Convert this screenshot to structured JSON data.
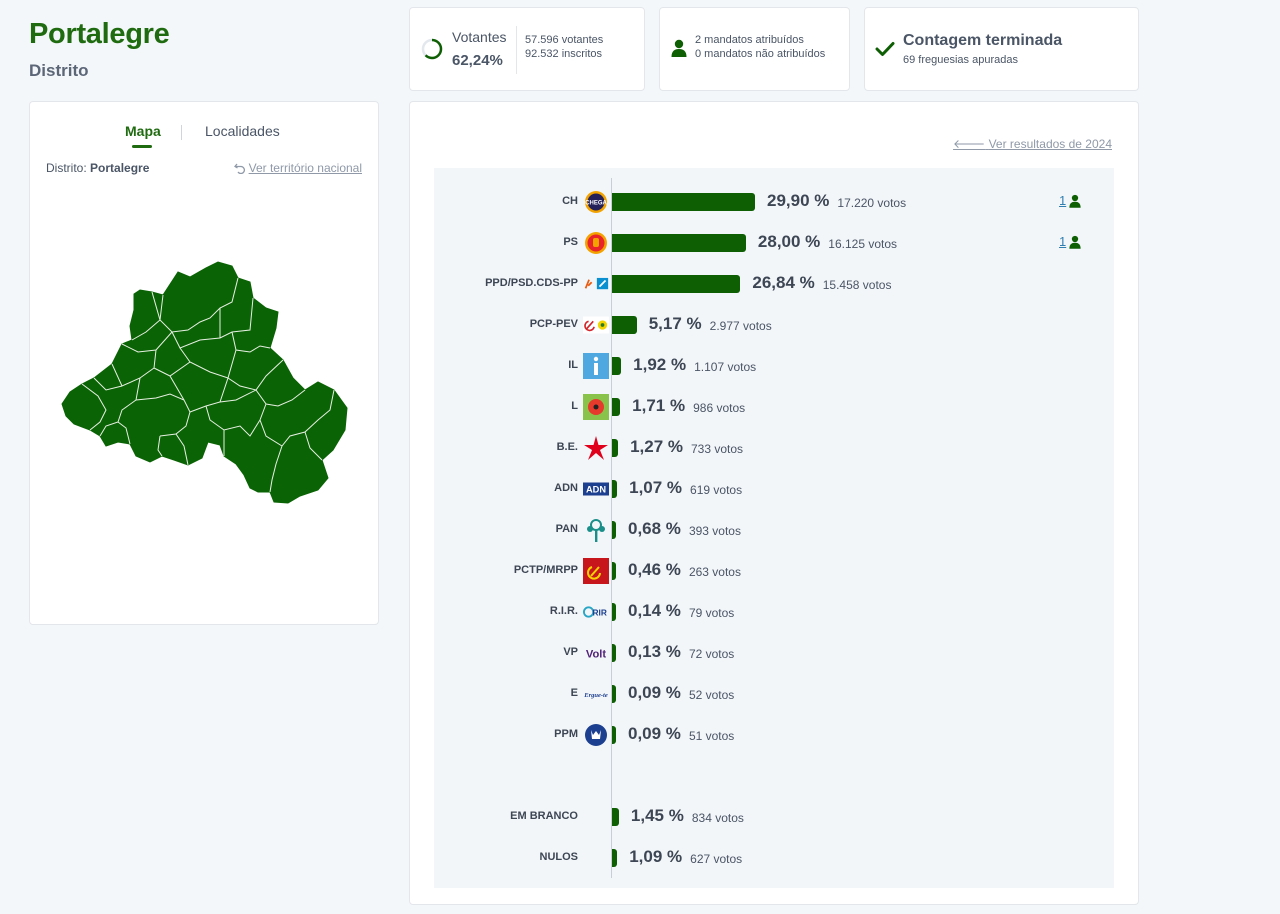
{
  "header": {
    "title": "Portalegre",
    "subtitle": "Distrito"
  },
  "map_panel": {
    "tab_map": "Mapa",
    "tab_localities": "Localidades",
    "district_label": "Distrito:",
    "district_name": "Portalegre",
    "national_link": "Ver território nacional",
    "map_color": "#0a6304"
  },
  "summary": {
    "voters_label": "Votantes",
    "voters_pct": "62,24%",
    "voters_count": "57.596 votantes",
    "registered": "92.532 inscritos",
    "mandates_assigned": "2 mandatos atribuídos",
    "mandates_unassigned": "0 mandatos não atribuídos",
    "count_status": "Contagem terminada",
    "parishes": "69 freguesias apuradas"
  },
  "results": {
    "previous_link": "Ver resultados de 2024",
    "bar_color": "#0e5f04",
    "parties": [
      {
        "name": "CH",
        "pct": "29,90 %",
        "votes": "17.220 votos",
        "value": 29.9,
        "mandates": "1",
        "logo": "chega-logo"
      },
      {
        "name": "PS",
        "pct": "28,00 %",
        "votes": "16.125 votos",
        "value": 28.0,
        "mandates": "1",
        "logo": "ps-fist-logo"
      },
      {
        "name": "PPD/PSD.CDS-PP",
        "pct": "26,84 %",
        "votes": "15.458 votos",
        "value": 26.84,
        "mandates": "",
        "logo": "ad-logo"
      },
      {
        "name": "PCP-PEV",
        "pct": "5,17 %",
        "votes": "2.977 votos",
        "value": 5.17,
        "mandates": "",
        "logo": "cdu-logo"
      },
      {
        "name": "IL",
        "pct": "1,92 %",
        "votes": "1.107 votos",
        "value": 1.92,
        "mandates": "",
        "logo": "il-logo"
      },
      {
        "name": "L",
        "pct": "1,71 %",
        "votes": "986 votos",
        "value": 1.71,
        "mandates": "",
        "logo": "livre-logo"
      },
      {
        "name": "B.E.",
        "pct": "1,27 %",
        "votes": "733 votos",
        "value": 1.27,
        "mandates": "",
        "logo": "be-star-logo"
      },
      {
        "name": "ADN",
        "pct": "1,07 %",
        "votes": "619 votos",
        "value": 1.07,
        "mandates": "",
        "logo": "adn-logo"
      },
      {
        "name": "PAN",
        "pct": "0,68 %",
        "votes": "393 votos",
        "value": 0.68,
        "mandates": "",
        "logo": "pan-tree-logo"
      },
      {
        "name": "PCTP/MRPP",
        "pct": "0,46 %",
        "votes": "263 votos",
        "value": 0.46,
        "mandates": "",
        "logo": "pctp-logo"
      },
      {
        "name": "R.I.R.",
        "pct": "0,14 %",
        "votes": "79 votos",
        "value": 0.14,
        "mandates": "",
        "logo": "rir-logo"
      },
      {
        "name": "VP",
        "pct": "0,13 %",
        "votes": "72 votos",
        "value": 0.13,
        "mandates": "",
        "logo": "volt-logo"
      },
      {
        "name": "E",
        "pct": "0,09 %",
        "votes": "52 votos",
        "value": 0.09,
        "mandates": "",
        "logo": "ergue-te-logo"
      },
      {
        "name": "PPM",
        "pct": "0,09 %",
        "votes": "51 votos",
        "value": 0.09,
        "mandates": "",
        "logo": "ppm-logo"
      }
    ],
    "others": [
      {
        "name": "EM BRANCO",
        "pct": "1,45 %",
        "votes": "834 votos",
        "value": 1.45
      },
      {
        "name": "NULOS",
        "pct": "1,09 %",
        "votes": "627 votos",
        "value": 1.09
      }
    ]
  }
}
